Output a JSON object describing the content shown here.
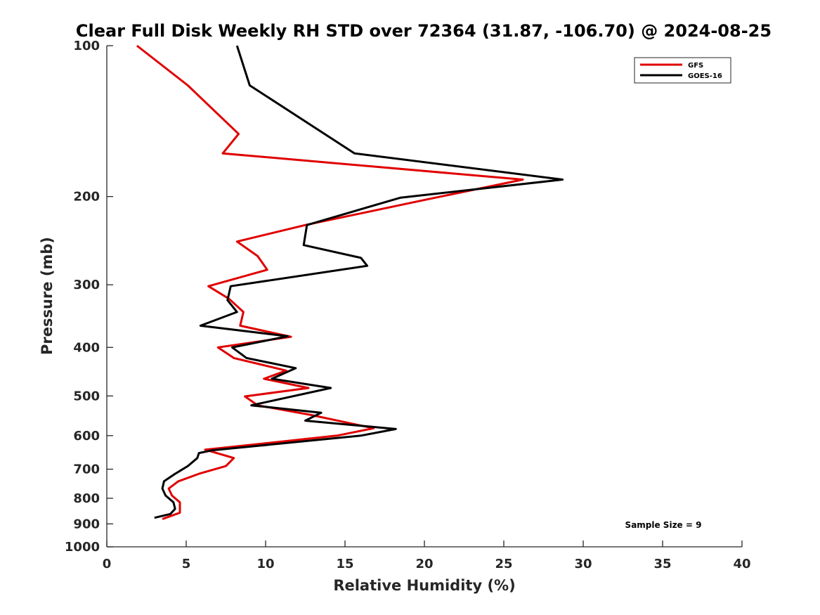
{
  "chart_data": {
    "type": "line",
    "title": "Clear Full Disk Weekly RH STD over 72364 (31.87, -106.70) @ 2024-08-25",
    "xlabel": "Relative Humidity (%)",
    "ylabel": "Pressure (mb)",
    "xlim": [
      0,
      40
    ],
    "ylim": [
      100,
      1000
    ],
    "y_scale": "log",
    "y_reversed": true,
    "x_ticks": [
      0,
      5,
      10,
      15,
      20,
      25,
      30,
      35,
      40
    ],
    "x_tick_labels": [
      "0",
      "5",
      "10",
      "15",
      "20",
      "25",
      "30",
      "35",
      "40"
    ],
    "y_ticks": [
      100,
      200,
      300,
      400,
      500,
      600,
      700,
      800,
      900,
      1000
    ],
    "y_tick_labels": [
      "100",
      "200",
      "300",
      "400",
      "500",
      "600",
      "700",
      "800",
      "900",
      "1000"
    ],
    "grid": false,
    "legend_position": "top-right",
    "annotation": "Sample Size = 9",
    "series": [
      {
        "name": "GFS",
        "color": "#e00000",
        "points": [
          [
            1.9,
            100
          ],
          [
            5.1,
            120
          ],
          [
            8.3,
            150
          ],
          [
            7.3,
            164
          ],
          [
            26.2,
            185
          ],
          [
            20.7,
            201
          ],
          [
            12.5,
            228
          ],
          [
            8.2,
            246
          ],
          [
            9.5,
            263
          ],
          [
            10.1,
            280
          ],
          [
            6.4,
            302
          ],
          [
            7.7,
            320
          ],
          [
            8.6,
            340
          ],
          [
            8.4,
            362
          ],
          [
            11.6,
            381
          ],
          [
            7.0,
            400
          ],
          [
            8.0,
            420
          ],
          [
            11.3,
            445
          ],
          [
            9.9,
            462
          ],
          [
            12.7,
            482
          ],
          [
            8.7,
            501
          ],
          [
            9.5,
            522
          ],
          [
            12.8,
            545
          ],
          [
            16.8,
            580
          ],
          [
            14.5,
            600
          ],
          [
            6.2,
            640
          ],
          [
            8.0,
            665
          ],
          [
            7.5,
            690
          ],
          [
            5.8,
            715
          ],
          [
            4.5,
            740
          ],
          [
            3.9,
            765
          ],
          [
            4.1,
            790
          ],
          [
            4.6,
            815
          ],
          [
            4.6,
            855
          ],
          [
            3.5,
            880
          ]
        ]
      },
      {
        "name": "GOES-16",
        "color": "#000000",
        "points": [
          [
            8.2,
            100
          ],
          [
            9.0,
            120
          ],
          [
            15.6,
            164
          ],
          [
            28.7,
            185
          ],
          [
            18.5,
            201
          ],
          [
            12.6,
            228
          ],
          [
            12.4,
            250
          ],
          [
            16.0,
            265
          ],
          [
            16.4,
            275
          ],
          [
            7.8,
            302
          ],
          [
            7.6,
            322
          ],
          [
            8.2,
            340
          ],
          [
            5.9,
            362
          ],
          [
            11.4,
            380
          ],
          [
            7.9,
            400
          ],
          [
            8.8,
            420
          ],
          [
            11.9,
            440
          ],
          [
            10.4,
            462
          ],
          [
            14.1,
            482
          ],
          [
            9.1,
            522
          ],
          [
            13.5,
            540
          ],
          [
            12.5,
            560
          ],
          [
            18.2,
            582
          ],
          [
            16.0,
            600
          ],
          [
            6.6,
            642
          ],
          [
            5.8,
            650
          ],
          [
            5.7,
            665
          ],
          [
            5.1,
            690
          ],
          [
            4.3,
            715
          ],
          [
            3.6,
            740
          ],
          [
            3.5,
            765
          ],
          [
            3.7,
            790
          ],
          [
            4.2,
            815
          ],
          [
            4.3,
            840
          ],
          [
            4.0,
            860
          ],
          [
            3.0,
            875
          ]
        ]
      }
    ]
  }
}
